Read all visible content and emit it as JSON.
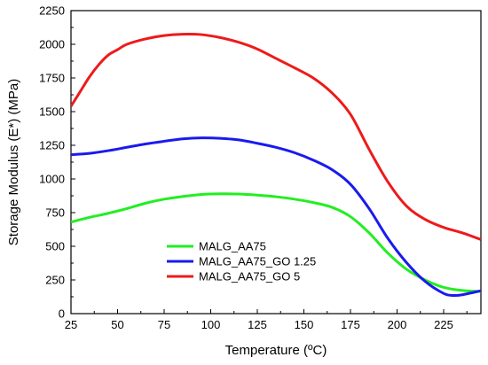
{
  "chart_data": {
    "type": "line",
    "xlabel": "Temperature (ºC)",
    "ylabel": "Storage Modulus (E*) (MPa)",
    "xlim": [
      25,
      245
    ],
    "ylim": [
      0,
      2250
    ],
    "xticks": [
      25,
      50,
      75,
      100,
      125,
      150,
      175,
      200,
      225
    ],
    "yticks": [
      0,
      250,
      500,
      750,
      1000,
      1250,
      1500,
      1750,
      2000,
      2250
    ],
    "grid": false,
    "legend_position": "bottom-left",
    "series": [
      {
        "name": "MALG_AA75",
        "color": "#22ee22",
        "x": [
          25,
          35,
          45,
          55,
          65,
          75,
          85,
          95,
          105,
          115,
          125,
          135,
          145,
          155,
          165,
          175,
          185,
          195,
          205,
          215,
          225,
          235,
          245
        ],
        "y": [
          680,
          715,
          745,
          780,
          820,
          850,
          870,
          885,
          890,
          888,
          880,
          868,
          850,
          825,
          790,
          720,
          600,
          450,
          330,
          250,
          195,
          172,
          165
        ]
      },
      {
        "name": "MALG_AA75_GO 1.25",
        "color": "#1a1aee",
        "x": [
          25,
          35,
          45,
          55,
          65,
          75,
          85,
          95,
          105,
          115,
          125,
          135,
          145,
          155,
          165,
          175,
          185,
          195,
          205,
          215,
          225,
          230,
          235,
          245
        ],
        "y": [
          1180,
          1190,
          1210,
          1235,
          1260,
          1280,
          1298,
          1305,
          1302,
          1290,
          1265,
          1235,
          1195,
          1140,
          1070,
          960,
          780,
          560,
          380,
          240,
          150,
          135,
          140,
          170
        ]
      },
      {
        "name": "MALG_AA75_GO 5",
        "color": "#ee1a1a",
        "x": [
          25,
          30,
          35,
          40,
          45,
          50,
          55,
          65,
          75,
          85,
          95,
          105,
          115,
          125,
          135,
          145,
          155,
          165,
          175,
          185,
          195,
          205,
          215,
          225,
          235,
          245
        ],
        "y": [
          1540,
          1650,
          1760,
          1850,
          1920,
          1960,
          2000,
          2040,
          2065,
          2075,
          2072,
          2050,
          2015,
          1965,
          1895,
          1825,
          1750,
          1640,
          1480,
          1220,
          980,
          800,
          700,
          640,
          600,
          550
        ]
      }
    ]
  }
}
